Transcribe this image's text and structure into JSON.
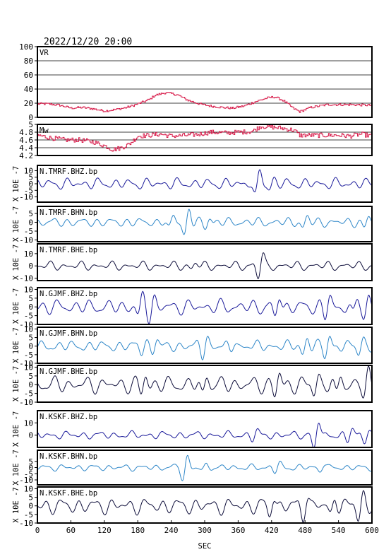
{
  "figure": {
    "timestamp": "2022/12/20 20:00",
    "xlabel": "SEC",
    "ylabel_units": "X 10E -7"
  },
  "chart_data": {
    "type": "line",
    "title": "2022/12/20 20:00",
    "xlabel": "SEC",
    "xlim": [
      0,
      600
    ],
    "xticks": [
      0,
      60,
      120,
      180,
      240,
      300,
      360,
      420,
      480,
      540,
      600
    ],
    "panels": [
      {
        "id": "vr",
        "label": "VR",
        "ylim": [
          0,
          100
        ],
        "yticks": [
          0,
          20,
          40,
          60,
          80,
          100
        ],
        "grid": true,
        "color": "#d81b4a",
        "style": "step",
        "anchors": [
          [
            0,
            19
          ],
          [
            20,
            19
          ],
          [
            40,
            17
          ],
          [
            60,
            13
          ],
          [
            80,
            14
          ],
          [
            100,
            12
          ],
          [
            120,
            9
          ],
          [
            140,
            11
          ],
          [
            160,
            14
          ],
          [
            180,
            19
          ],
          [
            200,
            25
          ],
          [
            210,
            31
          ],
          [
            230,
            35
          ],
          [
            250,
            32
          ],
          [
            270,
            24
          ],
          [
            290,
            19
          ],
          [
            310,
            16
          ],
          [
            330,
            14
          ],
          [
            350,
            13
          ],
          [
            370,
            16
          ],
          [
            390,
            22
          ],
          [
            410,
            27
          ],
          [
            425,
            29
          ],
          [
            440,
            24
          ],
          [
            460,
            12
          ],
          [
            470,
            8
          ],
          [
            490,
            14
          ],
          [
            520,
            18
          ],
          [
            560,
            18
          ],
          [
            600,
            17
          ]
        ],
        "noise": 1.6
      },
      {
        "id": "mw",
        "label": "Mw",
        "ylim": [
          4.2,
          5.0
        ],
        "yticks": [
          4.2,
          4.4,
          4.6,
          4.8,
          5.0
        ],
        "grid": true,
        "color": "#d81b4a",
        "style": "step",
        "anchors": [
          [
            0,
            4.72
          ],
          [
            25,
            4.65
          ],
          [
            50,
            4.6
          ],
          [
            75,
            4.6
          ],
          [
            100,
            4.55
          ],
          [
            120,
            4.45
          ],
          [
            135,
            4.35
          ],
          [
            150,
            4.4
          ],
          [
            165,
            4.5
          ],
          [
            180,
            4.7
          ],
          [
            200,
            4.72
          ],
          [
            220,
            4.75
          ],
          [
            240,
            4.7
          ],
          [
            270,
            4.72
          ],
          [
            290,
            4.75
          ],
          [
            310,
            4.8
          ],
          [
            340,
            4.78
          ],
          [
            360,
            4.8
          ],
          [
            385,
            4.82
          ],
          [
            400,
            4.95
          ],
          [
            420,
            4.93
          ],
          [
            440,
            4.9
          ],
          [
            460,
            4.85
          ],
          [
            470,
            4.72
          ],
          [
            500,
            4.72
          ],
          [
            540,
            4.72
          ],
          [
            560,
            4.7
          ],
          [
            580,
            4.75
          ],
          [
            600,
            4.7
          ]
        ],
        "noise": 0.06
      },
      {
        "id": "tmrf-bhz",
        "label": "N.TMRF.BHZ.bp",
        "ylim": [
          -14,
          14
        ],
        "yticks": [
          -10,
          -5,
          0,
          5,
          10
        ],
        "color": "#1a1a9a",
        "amp": 4,
        "bursts": [
          [
            395,
            13
          ],
          [
            420,
            4
          ]
        ]
      },
      {
        "id": "tmrf-bhn",
        "label": "N.TMRF.BHN.bp",
        "ylim": [
          -11,
          9
        ],
        "yticks": [
          -10,
          -5,
          0,
          5
        ],
        "color": "#2d86c8",
        "amp": 2.5,
        "bursts": [
          [
            240,
            5
          ],
          [
            268,
            9
          ],
          [
            305,
            4
          ],
          [
            480,
            4
          ],
          [
            590,
            4
          ]
        ]
      },
      {
        "id": "tmrf-bhe",
        "label": "N.TMRF.BHE.bp",
        "ylim": [
          -12,
          18
        ],
        "yticks": [
          -10,
          0,
          10
        ],
        "color": "#0d0d3a",
        "amp": 3.5,
        "bursts": [
          [
            400,
            13
          ],
          [
            280,
            3
          ]
        ]
      },
      {
        "id": "gjmf-bhz",
        "label": "N.GJMF.BHZ.bp",
        "ylim": [
          -10,
          11
        ],
        "yticks": [
          -10,
          -5,
          0,
          5,
          10
        ],
        "color": "#1a1a9a",
        "amp": 4,
        "bursts": [
          [
            185,
            7
          ],
          [
            205,
            6
          ],
          [
            430,
            9
          ],
          [
            520,
            7
          ],
          [
            570,
            7
          ],
          [
            590,
            9
          ]
        ]
      },
      {
        "id": "gjmf-bhn",
        "label": "N.GJMF.BHN.bp",
        "ylim": [
          -10,
          11
        ],
        "yticks": [
          -10,
          -5,
          0,
          5,
          10
        ],
        "color": "#2d86c8",
        "amp": 3,
        "bursts": [
          [
            190,
            5
          ],
          [
            210,
            6
          ],
          [
            300,
            7
          ],
          [
            350,
            4
          ],
          [
            480,
            6
          ],
          [
            520,
            8
          ],
          [
            580,
            6
          ]
        ]
      },
      {
        "id": "gjmf-bhe",
        "label": "N.GJMF.BHE.bp",
        "ylim": [
          -10,
          11
        ],
        "yticks": [
          -10,
          -5,
          0,
          5,
          10
        ],
        "color": "#0d0d3a",
        "amp": 4.5,
        "bursts": [
          [
            190,
            7
          ],
          [
            300,
            8
          ],
          [
            430,
            8
          ],
          [
            500,
            7
          ],
          [
            540,
            8
          ],
          [
            590,
            9
          ]
        ]
      },
      {
        "id": "kskf-bhz",
        "label": "N.KSKF.BHZ.bp",
        "ylim": [
          -10,
          20
        ],
        "yticks": [
          0,
          10
        ],
        "color": "#1a1a9a",
        "amp": 3,
        "bursts": [
          [
            390,
            4
          ],
          [
            500,
            15
          ],
          [
            560,
            6
          ],
          [
            590,
            7
          ]
        ]
      },
      {
        "id": "kskf-bhn",
        "label": "N.KSKF.BHN.bp",
        "ylim": [
          -14,
          14
        ],
        "yticks": [
          -10,
          -5,
          0,
          5
        ],
        "color": "#2d86c8",
        "amp": 2.5,
        "bursts": [
          [
            265,
            12
          ],
          [
            300,
            4
          ],
          [
            430,
            4
          ],
          [
            510,
            4
          ]
        ]
      },
      {
        "id": "kskf-bhe",
        "label": "N.KSKF.BHE.bp",
        "ylim": [
          -10,
          11
        ],
        "yticks": [
          -10,
          -5,
          0,
          5,
          10
        ],
        "color": "#0d0d3a",
        "amp": 4.5,
        "bursts": [
          [
            420,
            8
          ],
          [
            480,
            9
          ],
          [
            530,
            7
          ],
          [
            580,
            8
          ]
        ]
      }
    ]
  }
}
